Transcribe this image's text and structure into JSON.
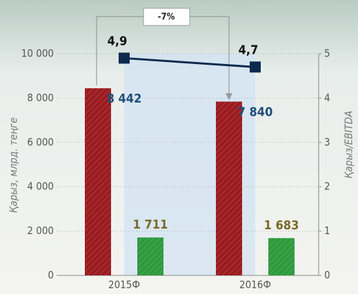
{
  "chart_data": {
    "type": "bar",
    "categories": [
      "2015Ф",
      "2016Ф"
    ],
    "ylabel": "Қарыз, млрд. теңге",
    "y2label": "Қарыз/EBITDA",
    "ylim": [
      0,
      10000
    ],
    "yticks": [
      {
        "value": 0,
        "label": "0"
      },
      {
        "value": 2000,
        "label": "2 000"
      },
      {
        "value": 4000,
        "label": "4 000"
      },
      {
        "value": 6000,
        "label": "6 000"
      },
      {
        "value": 8000,
        "label": "8 000"
      },
      {
        "value": 10000,
        "label": "10 000"
      }
    ],
    "y2lim": [
      0,
      5
    ],
    "y2ticks": [
      0,
      1,
      2,
      3,
      4,
      5
    ],
    "grid": true,
    "annotation": "-7%",
    "series": [
      {
        "type": "bar",
        "color": "#9b1b1f",
        "values": [
          8442,
          7840
        ],
        "value_labels": [
          "8 442",
          "7 840"
        ]
      },
      {
        "type": "bar",
        "color": "#2e9a3d",
        "values": [
          1711,
          1683
        ],
        "value_labels": [
          "1 711",
          "1 683"
        ]
      },
      {
        "type": "line",
        "axis": "y2",
        "color": "#0d2a4e",
        "values": [
          4.9,
          4.7
        ],
        "value_labels": [
          "4,9",
          "4,7"
        ]
      }
    ]
  }
}
